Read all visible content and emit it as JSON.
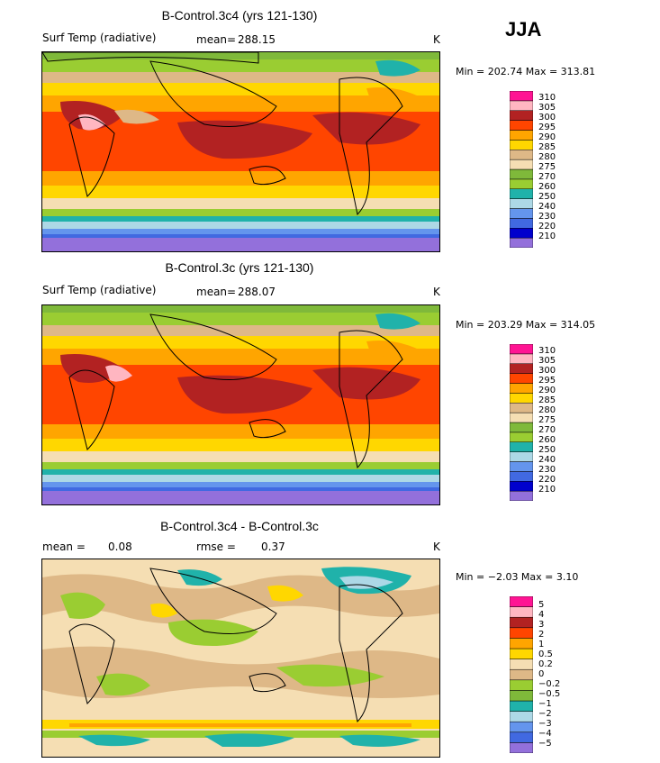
{
  "season": "JJA",
  "colors": {
    "temp": [
      "#9370db",
      "#0000cd",
      "#4169e1",
      "#6495ed",
      "#add8e6",
      "#20b2aa",
      "#9acd32",
      "#7fb93a",
      "#f5deb3",
      "#deb887",
      "#ffd700",
      "#ffa500",
      "#ff4500",
      "#b22222",
      "#ffb6c1",
      "#ff1493"
    ],
    "diff": [
      "#9370db",
      "#4169e1",
      "#6495ed",
      "#add8e6",
      "#20b2aa",
      "#7fb93a",
      "#9acd32",
      "#deb887",
      "#f5deb3",
      "#ffd700",
      "#ffa500",
      "#ff4500",
      "#b22222",
      "#ffb6c1",
      "#ff1493"
    ]
  },
  "chart_data": [
    {
      "type": "heatmap",
      "title": "B-Control.3c4 (yrs 121-130)",
      "variable": "Surf Temp (radiative)",
      "mean_label": "mean=",
      "mean_value": "288.15",
      "units": "K",
      "minmax": "Min = 202.74 Max = 313.81",
      "min": 202.74,
      "max": 313.81,
      "levels": [
        "210",
        "220",
        "230",
        "240",
        "250",
        "260",
        "270",
        "275",
        "280",
        "285",
        "290",
        "295",
        "300",
        "305",
        "310"
      ]
    },
    {
      "type": "heatmap",
      "title": "B-Control.3c (yrs 121-130)",
      "variable": "Surf Temp (radiative)",
      "mean_label": "mean=",
      "mean_value": "288.07",
      "units": "K",
      "minmax": "Min = 203.29 Max = 314.05",
      "min": 203.29,
      "max": 314.05,
      "levels": [
        "210",
        "220",
        "230",
        "240",
        "250",
        "260",
        "270",
        "275",
        "280",
        "285",
        "290",
        "295",
        "300",
        "305",
        "310"
      ]
    },
    {
      "type": "heatmap",
      "title": "B-Control.3c4 - B-Control.3c",
      "mean_label": "mean =",
      "mean_value": "0.08",
      "rmse_label": "rmse =",
      "rmse_value": "0.37",
      "units": "K",
      "minmax": "Min = −2.03 Max = 3.10",
      "min": -2.03,
      "max": 3.1,
      "levels": [
        "−5",
        "−4",
        "−3",
        "−2",
        "−1",
        "−0.5",
        "−0.2",
        "0",
        "0.2",
        "0.5",
        "1",
        "2",
        "3",
        "4",
        "5"
      ]
    }
  ]
}
